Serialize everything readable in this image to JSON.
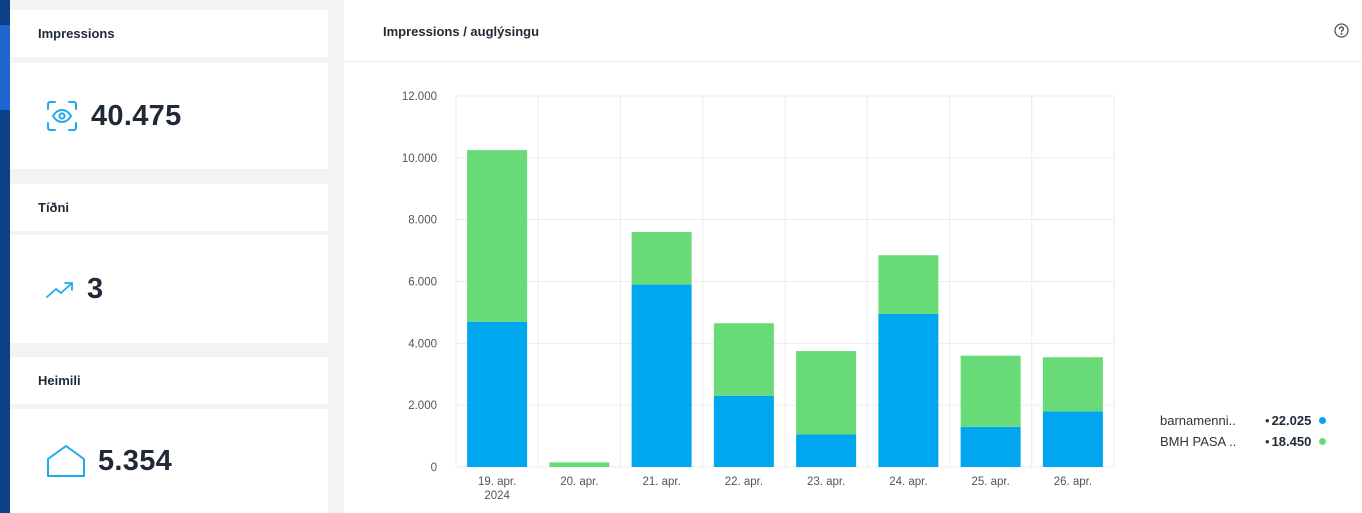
{
  "kpis": {
    "impressions": {
      "label": "Impressions",
      "value": "40.475",
      "icon": "eye-scan-icon"
    },
    "frequency": {
      "label": "Tíðni",
      "value": "3",
      "icon": "trend-up-icon"
    },
    "households": {
      "label": "Heimili",
      "value": "5.354",
      "icon": "home-icon"
    }
  },
  "chart_panel": {
    "title": "Impressions / auglýsingu",
    "help_icon": "help-circle-icon"
  },
  "legend": [
    {
      "name": "barnamenni..",
      "value": "22.025",
      "color": "#00a6ee"
    },
    {
      "name": "BMH PASA ..",
      "value": "18.450",
      "color": "#68db78"
    }
  ],
  "chart_data": {
    "type": "bar",
    "stacked": true,
    "categories": [
      "19. apr. 2024",
      "20. apr.",
      "21. apr.",
      "22. apr.",
      "23. apr.",
      "24. apr.",
      "25. apr.",
      "26. apr."
    ],
    "series": [
      {
        "name": "barnamenni..",
        "color": "#00a6ee",
        "values": [
          4700,
          0,
          5900,
          2300,
          1050,
          4950,
          1300,
          1800
        ]
      },
      {
        "name": "BMH PASA ..",
        "color": "#68db78",
        "values": [
          5550,
          150,
          1700,
          2350,
          2700,
          1900,
          2300,
          1750
        ]
      }
    ],
    "yticks": [
      "0",
      "2.000",
      "4.000",
      "6.000",
      "8.000",
      "10.000",
      "12.000"
    ],
    "ylim": [
      0,
      12000
    ],
    "grid": true,
    "legend_position": "right"
  }
}
